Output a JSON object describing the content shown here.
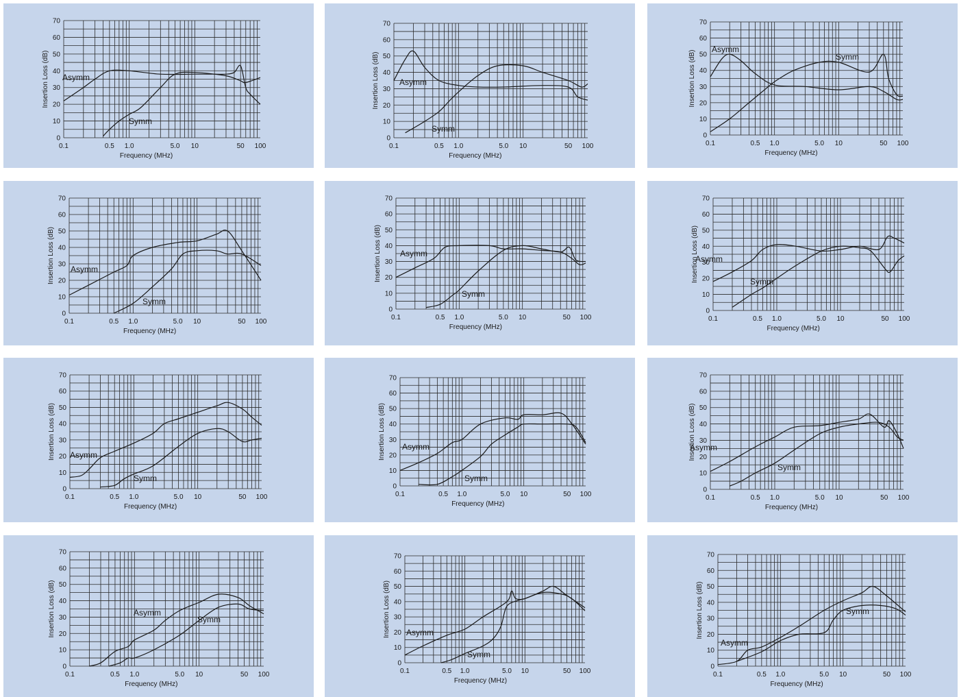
{
  "colors": {
    "panel_background": "#c6d5eb",
    "ink": "#1a1a1a"
  },
  "chart_data": [
    {
      "type": "line",
      "xlabel": "Frequency (MHz)",
      "ylabel": "Insertion Loss (dB)",
      "x_scale": "log",
      "xlim": [
        0.1,
        100
      ],
      "ylim": [
        0,
        70
      ],
      "grid": true,
      "x_ticks": [
        "0.1",
        "0.5",
        "1.0",
        "5.0",
        "10",
        "50",
        "100"
      ],
      "y_ticks": [
        "0",
        "10",
        "20",
        "30",
        "40",
        "50",
        "60",
        "70"
      ],
      "series": [
        {
          "name": "Asymm",
          "x": [
            0.1,
            0.2,
            0.3,
            0.5,
            1,
            3,
            10,
            20,
            30,
            40,
            50,
            60,
            70,
            100
          ],
          "y": [
            22,
            30,
            35,
            40,
            40,
            38,
            38,
            38,
            38,
            39,
            43,
            30,
            26,
            20
          ]
        },
        {
          "name": "Symm",
          "x": [
            0.4,
            0.5,
            0.7,
            1,
            1.5,
            3,
            5,
            10,
            30,
            50,
            60,
            100
          ],
          "y": [
            1,
            5,
            10,
            14,
            18,
            30,
            38,
            39,
            37,
            34,
            33,
            36
          ]
        }
      ]
    },
    {
      "type": "line",
      "xlabel": "Frequency (MHz)",
      "ylabel": "Insertion Loss (dB)",
      "x_scale": "log",
      "xlim": [
        0.1,
        100
      ],
      "ylim": [
        0,
        70
      ],
      "grid": true,
      "x_ticks": [
        "0.1",
        "0.5",
        "1.0",
        "5.0",
        "10",
        "50",
        "100"
      ],
      "y_ticks": [
        "0",
        "10",
        "20",
        "30",
        "40",
        "50",
        "60",
        "70"
      ],
      "series": [
        {
          "name": "Asymm",
          "x": [
            0.1,
            0.15,
            0.2,
            0.3,
            0.5,
            1,
            2,
            5,
            20,
            50,
            70,
            100
          ],
          "y": [
            35,
            48,
            53,
            43,
            35,
            32,
            31,
            31,
            32,
            31,
            25,
            23
          ]
        },
        {
          "name": "Symm",
          "x": [
            0.15,
            0.3,
            0.5,
            0.7,
            1,
            2,
            4,
            10,
            20,
            50,
            80,
            100
          ],
          "y": [
            3,
            10,
            16,
            22,
            28,
            38,
            44,
            44,
            40,
            35,
            31,
            33
          ]
        }
      ]
    },
    {
      "type": "line",
      "xlabel": "Frequency (MHz)",
      "ylabel": "Insertion Loss (dB)",
      "x_scale": "log",
      "xlim": [
        0.1,
        100
      ],
      "ylim": [
        0,
        70
      ],
      "grid": true,
      "x_ticks": [
        "0.1",
        "0.5",
        "1.0",
        "5.0",
        "10",
        "50",
        "100"
      ],
      "y_ticks": [
        "0",
        "10",
        "20",
        "30",
        "40",
        "50",
        "60",
        "70"
      ],
      "series": [
        {
          "name": "Asymm",
          "x": [
            0.1,
            0.15,
            0.2,
            0.3,
            0.5,
            1,
            3,
            10,
            30,
            50,
            80,
            100
          ],
          "y": [
            36,
            47,
            50,
            46,
            38,
            31,
            30,
            28,
            30,
            27,
            22,
            22
          ]
        },
        {
          "name": "Symm",
          "x": [
            0.1,
            0.2,
            0.4,
            0.7,
            1,
            2,
            5,
            10,
            30,
            50,
            60,
            80,
            100
          ],
          "y": [
            2,
            10,
            20,
            28,
            33,
            40,
            45,
            45,
            39,
            50,
            35,
            25,
            24
          ]
        }
      ]
    },
    {
      "type": "line",
      "xlabel": "Frequency (MHz)",
      "ylabel": "Insertion Loss (dB)",
      "x_scale": "log",
      "xlim": [
        0.1,
        100
      ],
      "ylim": [
        0,
        70
      ],
      "grid": true,
      "x_ticks": [
        "0.1",
        "0.5",
        "1.0",
        "5.0",
        "10",
        "50",
        "100"
      ],
      "y_ticks": [
        "0",
        "10",
        "20",
        "30",
        "40",
        "50",
        "60",
        "70"
      ],
      "series": [
        {
          "name": "Asymm",
          "x": [
            0.1,
            0.2,
            0.5,
            0.8,
            1,
            2,
            5,
            10,
            20,
            30,
            50,
            100
          ],
          "y": [
            11,
            17,
            25,
            29,
            35,
            40,
            43,
            44,
            48,
            50,
            38,
            20
          ]
        },
        {
          "name": "Symm",
          "x": [
            0.5,
            1,
            2,
            4,
            6,
            10,
            20,
            30,
            50,
            100
          ],
          "y": [
            0,
            6,
            16,
            27,
            36,
            38,
            38,
            36,
            36,
            29
          ]
        }
      ]
    },
    {
      "type": "line",
      "xlabel": "Frequency (MHz)",
      "ylabel": "Insertion Loss (dB)",
      "x_scale": "log",
      "xlim": [
        0.1,
        100
      ],
      "ylim": [
        0,
        70
      ],
      "grid": true,
      "x_ticks": [
        "0.1",
        "0.5",
        "1.0",
        "5.0",
        "10",
        "50",
        "100"
      ],
      "y_ticks": [
        "0",
        "10",
        "20",
        "30",
        "40",
        "50",
        "60",
        "70"
      ],
      "series": [
        {
          "name": "Asymm",
          "x": [
            0.1,
            0.2,
            0.4,
            0.6,
            1,
            3,
            5,
            10,
            20,
            40,
            60,
            80,
            100
          ],
          "y": [
            20,
            26,
            32,
            39,
            40,
            40,
            38,
            38,
            37,
            36,
            32,
            28,
            29
          ]
        },
        {
          "name": "Symm",
          "x": [
            0.3,
            0.5,
            0.8,
            1,
            2,
            5,
            10,
            20,
            40,
            55,
            70,
            100
          ],
          "y": [
            1,
            3,
            9,
            12,
            24,
            37,
            40,
            38,
            36,
            39,
            31,
            30
          ]
        }
      ]
    },
    {
      "type": "line",
      "xlabel": "Frequency (MHz)",
      "ylabel": "Insertion Loss (dB)",
      "x_scale": "log",
      "xlim": [
        0.1,
        100
      ],
      "ylim": [
        0,
        70
      ],
      "grid": true,
      "x_ticks": [
        "0.1",
        "0.5",
        "1.0",
        "5.0",
        "10",
        "50",
        "100"
      ],
      "y_ticks": [
        "0",
        "10",
        "20",
        "30",
        "40",
        "50",
        "60",
        "70"
      ],
      "series": [
        {
          "name": "Asymm",
          "x": [
            0.1,
            0.2,
            0.4,
            0.6,
            1,
            2,
            5,
            10,
            20,
            40,
            55,
            70,
            100
          ],
          "y": [
            18,
            24,
            31,
            38,
            41,
            40,
            37,
            38,
            40,
            38,
            46,
            45,
            42
          ]
        },
        {
          "name": "Symm",
          "x": [
            0.2,
            0.4,
            0.6,
            1,
            2,
            5,
            10,
            20,
            30,
            50,
            60,
            80,
            100
          ],
          "y": [
            2,
            10,
            14,
            20,
            28,
            37,
            40,
            39,
            37,
            26,
            24,
            31,
            34
          ]
        }
      ]
    },
    {
      "type": "line",
      "xlabel": "Frequency (MHz)",
      "ylabel": "Insertion Loss (dB)",
      "x_scale": "log",
      "xlim": [
        0.1,
        100
      ],
      "ylim": [
        0,
        70
      ],
      "grid": true,
      "x_ticks": [
        "0.1",
        "0.5",
        "1.0",
        "5.0",
        "10",
        "50",
        "100"
      ],
      "y_ticks": [
        "0",
        "10",
        "20",
        "30",
        "40",
        "50",
        "60",
        "70"
      ],
      "series": [
        {
          "name": "Asymm",
          "x": [
            0.1,
            0.15,
            0.2,
            0.3,
            0.5,
            1,
            2,
            3,
            5,
            10,
            20,
            30,
            50,
            70,
            100
          ],
          "y": [
            7,
            8,
            12,
            19,
            23,
            28,
            34,
            40,
            43,
            47,
            51,
            53,
            49,
            44,
            39
          ]
        },
        {
          "name": "Symm",
          "x": [
            0.3,
            0.5,
            0.7,
            1,
            2,
            5,
            10,
            20,
            30,
            50,
            70,
            100
          ],
          "y": [
            1,
            2,
            6,
            9,
            14,
            26,
            34,
            37,
            35,
            29,
            30,
            31
          ]
        }
      ]
    },
    {
      "type": "line",
      "xlabel": "Frequency (MHz)",
      "ylabel": "Insertion Loss (dB)",
      "x_scale": "log",
      "xlim": [
        0.1,
        100
      ],
      "ylim": [
        0,
        70
      ],
      "grid": true,
      "x_ticks": [
        "0.1",
        "0.5",
        "1.0",
        "5.0",
        "10",
        "50",
        "100"
      ],
      "y_ticks": [
        "0",
        "10",
        "20",
        "30",
        "40",
        "50",
        "60",
        "70"
      ],
      "series": [
        {
          "name": "Asymm",
          "x": [
            0.1,
            0.2,
            0.4,
            0.7,
            1,
            2,
            5,
            8,
            10,
            20,
            40,
            60,
            100
          ],
          "y": [
            10,
            15,
            21,
            28,
            30,
            40,
            44,
            43,
            46,
            46,
            47,
            40,
            27
          ]
        },
        {
          "name": "Symm",
          "x": [
            0.2,
            0.4,
            0.7,
            1,
            2,
            3,
            5,
            8,
            10,
            20,
            50,
            70,
            100
          ],
          "y": [
            1,
            1,
            6,
            10,
            19,
            27,
            33,
            38,
            40,
            40,
            40,
            38,
            28
          ]
        }
      ]
    },
    {
      "type": "line",
      "xlabel": "Frequency (MHz)",
      "ylabel": "Insertion Loss (dB)",
      "x_scale": "log",
      "xlim": [
        0.1,
        100
      ],
      "ylim": [
        0,
        70
      ],
      "grid": true,
      "x_ticks": [
        "0.1",
        "0.5",
        "1.0",
        "5.0",
        "10",
        "50",
        "100"
      ],
      "y_ticks": [
        "0",
        "10",
        "20",
        "30",
        "40",
        "50",
        "60",
        "70"
      ],
      "series": [
        {
          "name": "Asymm",
          "x": [
            0.1,
            0.2,
            0.5,
            1,
            2,
            5,
            10,
            20,
            30,
            50,
            60,
            80,
            100
          ],
          "y": [
            11,
            17,
            26,
            32,
            38,
            39,
            41,
            43,
            46,
            38,
            42,
            34,
            25
          ]
        },
        {
          "name": "Symm",
          "x": [
            0.2,
            0.3,
            0.5,
            1,
            2,
            5,
            10,
            20,
            40,
            60,
            80,
            100
          ],
          "y": [
            2,
            5,
            10,
            16,
            24,
            34,
            38,
            40,
            41,
            38,
            32,
            30
          ]
        }
      ]
    },
    {
      "type": "line",
      "xlabel": "Frequency (MHz)",
      "ylabel": "Insertion Loss (dB)",
      "x_scale": "log",
      "xlim": [
        0.1,
        100
      ],
      "ylim": [
        0,
        70
      ],
      "grid": true,
      "x_ticks": [
        "0.1",
        "0.5",
        "1.0",
        "5.0",
        "10",
        "50",
        "100"
      ],
      "y_ticks": [
        "0",
        "10",
        "20",
        "30",
        "40",
        "50",
        "60",
        "70"
      ],
      "series": [
        {
          "name": "Asymm",
          "x": [
            0.2,
            0.3,
            0.5,
            0.8,
            1,
            2,
            3,
            5,
            10,
            20,
            40,
            60,
            100
          ],
          "y": [
            0,
            2,
            9,
            12,
            16,
            22,
            28,
            34,
            39,
            44,
            42,
            37,
            32
          ]
        },
        {
          "name": "Symm",
          "x": [
            0.4,
            0.6,
            0.8,
            1,
            2,
            5,
            10,
            20,
            40,
            60,
            100
          ],
          "y": [
            0,
            2,
            5,
            5,
            10,
            19,
            28,
            36,
            38,
            35,
            34
          ]
        }
      ]
    },
    {
      "type": "line",
      "xlabel": "Frequency (MHz)",
      "ylabel": "Insertion Loss (dB)",
      "x_scale": "log",
      "xlim": [
        0.1,
        100
      ],
      "ylim": [
        0,
        70
      ],
      "grid": true,
      "x_ticks": [
        "0.1",
        "0.5",
        "1.0",
        "5.0",
        "10",
        "50",
        "100"
      ],
      "y_ticks": [
        "0",
        "10",
        "20",
        "30",
        "40",
        "50",
        "60",
        "70"
      ],
      "series": [
        {
          "name": "Asymm",
          "x": [
            0.1,
            0.2,
            0.5,
            1,
            2,
            5,
            6,
            7,
            10,
            20,
            30,
            50,
            100
          ],
          "y": [
            5,
            11,
            18,
            22,
            30,
            40,
            47,
            42,
            42,
            47,
            50,
            44,
            36
          ]
        },
        {
          "name": "Symm",
          "x": [
            0.4,
            0.6,
            1,
            2,
            3,
            4,
            5,
            8,
            10,
            20,
            40,
            60,
            100
          ],
          "y": [
            0,
            2,
            6,
            11,
            16,
            24,
            37,
            41,
            42,
            46,
            45,
            42,
            34
          ]
        }
      ]
    },
    {
      "type": "line",
      "xlabel": "Frequency (MHz)",
      "ylabel": "Insertion Loss (dB)",
      "x_scale": "log",
      "xlim": [
        0.1,
        100
      ],
      "ylim": [
        0,
        70
      ],
      "grid": true,
      "x_ticks": [
        "0.1",
        "0.5",
        "1.0",
        "5.0",
        "10",
        "50",
        "100"
      ],
      "y_ticks": [
        "0",
        "10",
        "20",
        "30",
        "40",
        "50",
        "60",
        "70"
      ],
      "series": [
        {
          "name": "Asymm",
          "x": [
            0.1,
            0.2,
            0.3,
            0.5,
            1,
            2,
            5,
            10,
            20,
            30,
            50,
            100
          ],
          "y": [
            1,
            3,
            10,
            12,
            18,
            25,
            35,
            41,
            46,
            50,
            44,
            34
          ]
        },
        {
          "name": "Symm",
          "x": [
            0.2,
            0.5,
            1,
            2,
            5,
            7,
            10,
            20,
            40,
            70,
            100
          ],
          "y": [
            3,
            9,
            16,
            20,
            21,
            29,
            35,
            38,
            38,
            36,
            32
          ]
        }
      ]
    }
  ]
}
